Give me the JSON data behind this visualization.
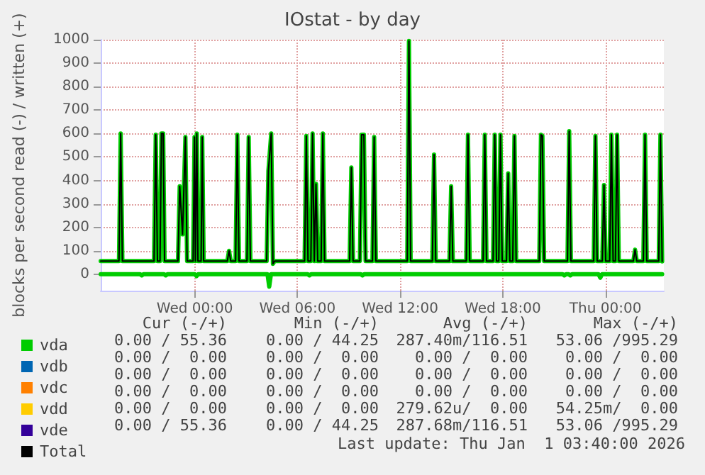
{
  "chart_data": {
    "type": "line",
    "title": "IOstat - by day",
    "ylabel": "blocks per second read (-) / written (+)",
    "x": [
      "2025-12-30T18:30",
      "2025-12-30T19:34",
      "2025-12-30T19:40",
      "2025-12-30T19:46",
      "2025-12-30T21:37",
      "2025-12-30T21:43",
      "2025-12-30T21:49",
      "2025-12-30T21:58",
      "2025-12-30T22:03",
      "2025-12-30T22:09",
      "2025-12-30T22:14",
      "2025-12-30T23:01",
      "2025-12-30T23:07",
      "2025-12-30T23:17",
      "2025-12-30T23:27",
      "2025-12-30T23:33",
      "2025-12-30T23:54",
      "2025-12-30T23:59",
      "2025-12-31T00:02",
      "2025-12-31T00:07",
      "2025-12-31T00:11",
      "2025-12-31T00:22",
      "2025-12-31T00:26",
      "2025-12-31T00:31",
      "2025-12-31T01:54",
      "2025-12-31T02:00",
      "2025-12-31T02:06",
      "2025-12-31T02:23",
      "2025-12-31T02:29",
      "2025-12-31T02:35",
      "2025-12-31T03:03",
      "2025-12-31T03:09",
      "2025-12-31T03:15",
      "2025-12-31T04:12",
      "2025-12-31T04:18",
      "2025-12-31T04:28",
      "2025-12-31T04:34",
      "2025-12-31T04:40",
      "2025-12-31T06:25",
      "2025-12-31T06:31",
      "2025-12-31T06:37",
      "2025-12-31T06:47",
      "2025-12-31T06:53",
      "2025-12-31T06:59",
      "2025-12-31T07:05",
      "2025-12-31T07:11",
      "2025-12-31T07:23",
      "2025-12-31T07:29",
      "2025-12-31T07:35",
      "2025-12-31T09:03",
      "2025-12-31T09:09",
      "2025-12-31T09:15",
      "2025-12-31T09:39",
      "2025-12-31T09:45",
      "2025-12-31T09:53",
      "2025-12-31T09:59",
      "2025-12-31T10:23",
      "2025-12-31T10:29",
      "2025-12-31T10:35",
      "2025-12-31T12:25",
      "2025-12-31T12:31",
      "2025-12-31T12:37",
      "2025-12-31T13:53",
      "2025-12-31T13:59",
      "2025-12-31T14:05",
      "2025-12-31T14:53",
      "2025-12-31T14:59",
      "2025-12-31T15:05",
      "2025-12-31T15:52",
      "2025-12-31T15:58",
      "2025-12-31T16:04",
      "2025-12-31T16:51",
      "2025-12-31T16:57",
      "2025-12-31T17:03",
      "2025-12-31T17:26",
      "2025-12-31T17:32",
      "2025-12-31T17:38",
      "2025-12-31T17:46",
      "2025-12-31T17:52",
      "2025-12-31T17:58",
      "2025-12-31T18:13",
      "2025-12-31T18:19",
      "2025-12-31T18:25",
      "2025-12-31T18:35",
      "2025-12-31T18:41",
      "2025-12-31T18:47",
      "2025-12-31T20:08",
      "2025-12-31T20:14",
      "2025-12-31T20:19",
      "2025-12-31T20:25",
      "2025-12-31T21:47",
      "2025-12-31T21:53",
      "2025-12-31T21:59",
      "2025-12-31T23:19",
      "2025-12-31T23:25",
      "2025-12-31T23:31",
      "2025-12-31T23:49",
      "2025-12-31T23:55",
      "2026-01-01T00:01",
      "2026-01-01T00:15",
      "2026-01-01T00:21",
      "2026-01-01T00:27",
      "2026-01-01T00:35",
      "2026-01-01T00:41",
      "2026-01-01T00:47",
      "2026-01-01T01:38",
      "2026-01-01T01:44",
      "2026-01-01T01:50",
      "2026-01-01T02:13",
      "2026-01-01T02:19",
      "2026-01-01T02:25",
      "2026-01-01T03:07",
      "2026-01-01T03:13",
      "2026-01-01T03:19"
    ],
    "series": [
      {
        "name": "vda",
        "type": "line",
        "color": "#00cc00",
        "values": [
          56,
          56,
          600,
          56,
          56,
          595,
          56,
          56,
          600,
          600,
          56,
          56,
          375,
          170,
          585,
          56,
          56,
          585,
          56,
          600,
          56,
          56,
          585,
          56,
          56,
          100,
          56,
          56,
          595,
          56,
          56,
          585,
          56,
          56,
          440,
          600,
          44,
          56,
          56,
          590,
          56,
          56,
          600,
          56,
          385,
          56,
          56,
          600,
          56,
          56,
          455,
          56,
          56,
          595,
          595,
          56,
          56,
          585,
          56,
          56,
          995,
          56,
          56,
          510,
          56,
          56,
          375,
          56,
          56,
          595,
          56,
          56,
          595,
          56,
          56,
          595,
          56,
          56,
          595,
          56,
          56,
          430,
          56,
          56,
          590,
          56,
          56,
          595,
          590,
          56,
          56,
          610,
          56,
          56,
          590,
          56,
          56,
          380,
          56,
          56,
          595,
          56,
          56,
          595,
          56,
          56,
          105,
          56,
          56,
          595,
          56,
          56,
          595,
          55
        ]
      },
      {
        "type": "area",
        "color": "#00cc00",
        "x": [
          "2025-12-30T18:30",
          "2025-12-30T20:48",
          "2025-12-30T20:54",
          "2025-12-30T21:00",
          "2025-12-30T22:12",
          "2025-12-30T22:18",
          "2025-12-30T22:24",
          "2025-12-31T00:00",
          "2025-12-31T00:06",
          "2025-12-31T00:12",
          "2025-12-31T04:15",
          "2025-12-31T04:21",
          "2025-12-31T04:27",
          "2025-12-31T06:36",
          "2025-12-31T06:42",
          "2025-12-31T06:48",
          "2025-12-31T09:42",
          "2025-12-31T09:48",
          "2025-12-31T09:54",
          "2025-12-31T21:30",
          "2025-12-31T21:36",
          "2025-12-31T21:42",
          "2025-12-31T21:51",
          "2025-12-31T21:57",
          "2025-12-31T22:03",
          "2025-12-31T23:36",
          "2025-12-31T23:42",
          "2025-12-31T23:48",
          "2026-01-01T03:19"
        ],
        "values": [
          0,
          0,
          -5,
          0,
          0,
          -5,
          0,
          0,
          -8,
          0,
          0,
          -53,
          0,
          0,
          -5,
          0,
          0,
          -5,
          0,
          0,
          -5,
          0,
          0,
          -5,
          0,
          0,
          -15,
          0,
          0
        ]
      },
      {
        "name": "vdb",
        "color": "#0066b3",
        "values": [
          null,
          null,
          null,
          null,
          null,
          null,
          null,
          null,
          null,
          null,
          null,
          null,
          null,
          null,
          null,
          null,
          null,
          null,
          null,
          null,
          null,
          null,
          null,
          null,
          null,
          null,
          null,
          null,
          null,
          null,
          null,
          null,
          null,
          null,
          null,
          null,
          null,
          null,
          null,
          null,
          null,
          null,
          null,
          null,
          null,
          null,
          null,
          null,
          null,
          null,
          null,
          null,
          null,
          null,
          null,
          null,
          null,
          null,
          null,
          null,
          null,
          null,
          null,
          null,
          null,
          null,
          null,
          null,
          null,
          null,
          null,
          null,
          null,
          null,
          null,
          null,
          null,
          null,
          null,
          null,
          null,
          null,
          null,
          null,
          null,
          null,
          null,
          null,
          null,
          null,
          null,
          null,
          null,
          null,
          null,
          null,
          null,
          null,
          null,
          null,
          null,
          null,
          null,
          null,
          null,
          null,
          null,
          null,
          null,
          null,
          null,
          null,
          null,
          null
        ]
      },
      {
        "name": "vdc",
        "color": "#ff8000",
        "values": [
          null,
          null,
          null,
          null,
          null,
          null,
          null,
          null,
          null,
          null,
          null,
          null,
          null,
          null,
          null,
          null,
          null,
          null,
          null,
          null,
          null,
          null,
          null,
          null,
          null,
          null,
          null,
          null,
          null,
          null,
          null,
          null,
          null,
          null,
          null,
          null,
          null,
          null,
          null,
          null,
          null,
          null,
          null,
          null,
          null,
          null,
          null,
          null,
          null,
          null,
          null,
          null,
          null,
          null,
          null,
          null,
          null,
          null,
          null,
          null,
          null,
          null,
          null,
          null,
          null,
          null,
          null,
          null,
          null,
          null,
          null,
          null,
          null,
          null,
          null,
          null,
          null,
          null,
          null,
          null,
          null,
          null,
          null,
          null,
          null,
          null,
          null,
          null,
          null,
          null,
          null,
          null,
          null,
          null,
          null,
          null,
          null,
          null,
          null,
          null,
          null,
          null,
          null,
          null,
          null,
          null,
          null,
          null,
          null,
          null,
          null,
          null,
          null,
          null
        ]
      },
      {
        "name": "vdd",
        "color": "#ffcc00",
        "values": [
          null,
          null,
          null,
          null,
          null,
          null,
          null,
          null,
          null,
          null,
          null,
          null,
          null,
          null,
          null,
          null,
          null,
          null,
          null,
          null,
          null,
          null,
          null,
          null,
          null,
          null,
          null,
          null,
          null,
          null,
          null,
          null,
          null,
          null,
          null,
          null,
          null,
          null,
          null,
          null,
          null,
          null,
          null,
          null,
          null,
          null,
          null,
          null,
          null,
          null,
          null,
          null,
          null,
          null,
          null,
          null,
          null,
          null,
          null,
          null,
          null,
          null,
          null,
          null,
          null,
          null,
          null,
          null,
          null,
          null,
          null,
          null,
          null,
          null,
          null,
          null,
          null,
          null,
          null,
          null,
          null,
          null,
          null,
          null,
          null,
          null,
          null,
          null,
          null,
          null,
          null,
          null,
          null,
          null,
          null,
          null,
          null,
          null,
          null,
          null,
          null,
          null,
          null,
          null,
          null,
          null,
          null,
          null,
          null,
          null,
          null,
          null,
          null,
          null
        ]
      },
      {
        "name": "vde",
        "color": "#330099",
        "values": [
          null,
          null,
          null,
          null,
          null,
          null,
          null,
          null,
          null,
          null,
          null,
          null,
          null,
          null,
          null,
          null,
          null,
          null,
          null,
          null,
          null,
          null,
          null,
          null,
          null,
          null,
          null,
          null,
          null,
          null,
          null,
          null,
          null,
          null,
          null,
          null,
          null,
          null,
          null,
          null,
          null,
          null,
          null,
          null,
          null,
          null,
          null,
          null,
          null,
          null,
          null,
          null,
          null,
          null,
          null,
          null,
          null,
          null,
          null,
          null,
          null,
          null,
          null,
          null,
          null,
          null,
          null,
          null,
          null,
          null,
          null,
          null,
          null,
          null,
          null,
          null,
          null,
          null,
          null,
          null,
          null,
          null,
          null,
          null,
          null,
          null,
          null,
          null,
          null,
          null,
          null,
          null,
          null,
          null,
          null,
          null,
          null,
          null,
          null,
          null,
          null,
          null,
          null,
          null,
          null,
          null,
          null,
          null,
          null,
          null,
          null,
          null,
          null,
          null
        ]
      },
      {
        "name": "Total",
        "color": "#000000",
        "values": [
          56,
          56,
          600,
          56,
          56,
          595,
          56,
          56,
          600,
          600,
          56,
          56,
          375,
          170,
          585,
          56,
          56,
          585,
          56,
          600,
          56,
          56,
          585,
          56,
          56,
          100,
          56,
          56,
          595,
          56,
          56,
          585,
          56,
          56,
          440,
          600,
          44,
          56,
          56,
          590,
          56,
          56,
          600,
          56,
          385,
          56,
          56,
          600,
          56,
          56,
          455,
          56,
          56,
          595,
          595,
          56,
          56,
          585,
          56,
          56,
          995,
          56,
          56,
          510,
          56,
          56,
          375,
          56,
          56,
          595,
          56,
          56,
          595,
          56,
          56,
          595,
          56,
          56,
          595,
          56,
          56,
          430,
          56,
          56,
          590,
          56,
          56,
          595,
          590,
          56,
          56,
          610,
          56,
          56,
          590,
          56,
          56,
          380,
          56,
          56,
          595,
          56,
          56,
          595,
          56,
          56,
          105,
          56,
          56,
          595,
          56,
          56,
          595,
          55
        ]
      }
    ],
    "xlim": [
      "2025-12-30T18:30",
      "2026-01-01T03:25"
    ],
    "xticks": [
      {
        "value": "2025-12-31T00:00",
        "label": "Wed 00:00"
      },
      {
        "value": "2025-12-31T06:00",
        "label": "Wed 06:00"
      },
      {
        "value": "2025-12-31T12:00",
        "label": "Wed 12:00"
      },
      {
        "value": "2025-12-31T18:00",
        "label": "Wed 18:00"
      },
      {
        "value": "2026-01-01T00:00",
        "label": "Thu 00:00"
      }
    ],
    "ylim": [
      -70,
      1000
    ],
    "yticks": [
      0,
      100,
      200,
      300,
      400,
      500,
      600,
      700,
      800,
      900,
      1000
    ],
    "grid": true,
    "legend": "bottom left",
    "marker": "none",
    "line_style": "solid",
    "annotations": [
      "Cur (-/+)",
      "Min (-/+)",
      "Avg (-/+)",
      "Max (-/+)",
      "0.00 / 55.36",
      "0.00 / 44.25",
      "287.40m/116.51",
      "53.06 /995.29",
      "0.00 /  0.00",
      "0.00 /  0.00",
      "0.00 /  0.00",
      "0.00 /  0.00",
      "0.00 /  0.00",
      "0.00 /  0.00",
      "0.00 /  0.00",
      "0.00 /  0.00",
      "0.00 /  0.00",
      "0.00 /  0.00",
      "0.00 /  0.00",
      "0.00 /  0.00",
      "0.00 /  0.00",
      "0.00 /  0.00",
      "279.62u/  0.00",
      "54.25m/  0.00",
      "0.00 / 55.36",
      "0.00 / 44.25",
      "287.68m/116.51",
      "53.06 /995.29",
      "Last update: Thu Jan  1 03:40:00 2026"
    ]
  }
}
